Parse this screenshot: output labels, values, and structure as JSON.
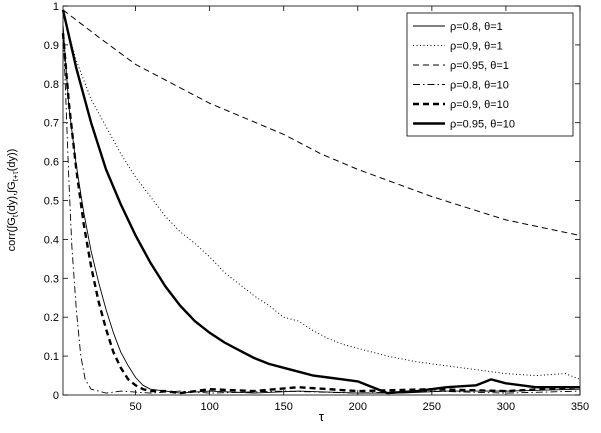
{
  "chart_data": {
    "type": "line",
    "title": "",
    "xlabel": "τ",
    "ylabel_main": "corr(∫G",
    "ylabel_sub1": "t",
    "ylabel_mid": "(dy),∫G",
    "ylabel_sub2": "t+τ",
    "ylabel_end": "(dy))",
    "xlim": [
      1,
      350
    ],
    "ylim": [
      0,
      1
    ],
    "xticks": [
      50,
      100,
      150,
      200,
      250,
      300,
      350
    ],
    "yticks": [
      0,
      0.1,
      0.2,
      0.3,
      0.4,
      0.5,
      0.6,
      0.7,
      0.8,
      0.9,
      1
    ],
    "xtick_labels": [
      "50",
      "100",
      "150",
      "200",
      "250",
      "300",
      "350"
    ],
    "ytick_labels": [
      "0",
      "0.1",
      "0.2",
      "0.3",
      "0.4",
      "0.5",
      "0.6",
      "0.7",
      "0.8",
      "0.9",
      "1"
    ],
    "grid": false,
    "legend_position": "top-right",
    "colors": {
      "line": "#000000",
      "background": "#ffffff",
      "axes": "#000000"
    },
    "series": [
      {
        "name": "ρ=0.8, θ=1",
        "style": "solid",
        "width": 0.9,
        "x": [
          1,
          5,
          10,
          15,
          20,
          25,
          30,
          35,
          40,
          45,
          50,
          55,
          60,
          70,
          80,
          100,
          130,
          160,
          200,
          230,
          260,
          300,
          350
        ],
        "y": [
          0.95,
          0.74,
          0.59,
          0.47,
          0.37,
          0.29,
          0.22,
          0.16,
          0.11,
          0.075,
          0.045,
          0.025,
          0.015,
          0.01,
          0.005,
          0.01,
          0.005,
          0.01,
          0.005,
          0.005,
          0.01,
          0.01,
          0.015
        ]
      },
      {
        "name": "ρ=0.9, θ=1",
        "style": "dotted",
        "width": 1,
        "x": [
          1,
          10,
          20,
          30,
          40,
          50,
          60,
          70,
          80,
          90,
          100,
          110,
          120,
          130,
          140,
          150,
          160,
          170,
          180,
          190,
          200,
          220,
          240,
          260,
          280,
          300,
          320,
          340,
          350
        ],
        "y": [
          0.98,
          0.86,
          0.76,
          0.69,
          0.62,
          0.56,
          0.51,
          0.46,
          0.42,
          0.39,
          0.355,
          0.315,
          0.285,
          0.255,
          0.23,
          0.2,
          0.19,
          0.165,
          0.145,
          0.13,
          0.12,
          0.1,
          0.085,
          0.075,
          0.065,
          0.055,
          0.05,
          0.055,
          0.04
        ]
      },
      {
        "name": "ρ=0.95, θ=1",
        "style": "dashed",
        "width": 1,
        "x": [
          1,
          25,
          50,
          75,
          100,
          125,
          150,
          175,
          200,
          225,
          250,
          275,
          300,
          325,
          350
        ],
        "y": [
          0.99,
          0.92,
          0.85,
          0.8,
          0.75,
          0.71,
          0.67,
          0.62,
          0.58,
          0.545,
          0.51,
          0.48,
          0.45,
          0.43,
          0.41
        ]
      },
      {
        "name": "ρ=0.8, θ=10",
        "style": "dashdot",
        "width": 0.9,
        "x": [
          1,
          3,
          5,
          7,
          10,
          13,
          16,
          20,
          25,
          30,
          40,
          60,
          80,
          100,
          150,
          200,
          250,
          300,
          350
        ],
        "y": [
          0.95,
          0.75,
          0.55,
          0.38,
          0.22,
          0.1,
          0.04,
          0.015,
          0.01,
          0.005,
          0.01,
          0.005,
          0.01,
          0.005,
          0.01,
          0.005,
          0.01,
          0.005,
          0.01
        ]
      },
      {
        "name": "ρ=0.9, θ=10",
        "style": "dashed",
        "width": 2.4,
        "x": [
          1,
          5,
          10,
          15,
          20,
          25,
          30,
          35,
          40,
          45,
          50,
          55,
          60,
          70,
          80,
          100,
          130,
          160,
          200,
          250,
          300,
          350
        ],
        "y": [
          0.93,
          0.75,
          0.58,
          0.44,
          0.33,
          0.24,
          0.17,
          0.11,
          0.07,
          0.04,
          0.025,
          0.015,
          0.01,
          0.01,
          0.005,
          0.015,
          0.01,
          0.02,
          0.01,
          0.015,
          0.01,
          0.02
        ]
      },
      {
        "name": "ρ=0.95, θ=10",
        "style": "solid",
        "width": 2.4,
        "x": [
          1,
          10,
          20,
          30,
          40,
          50,
          60,
          70,
          80,
          90,
          100,
          110,
          120,
          130,
          140,
          150,
          160,
          170,
          180,
          190,
          200,
          210,
          220,
          240,
          260,
          280,
          290,
          300,
          320,
          340,
          350
        ],
        "y": [
          0.99,
          0.84,
          0.7,
          0.58,
          0.49,
          0.41,
          0.34,
          0.28,
          0.23,
          0.19,
          0.16,
          0.135,
          0.115,
          0.095,
          0.08,
          0.07,
          0.06,
          0.05,
          0.045,
          0.04,
          0.035,
          0.02,
          0.005,
          0.01,
          0.02,
          0.025,
          0.04,
          0.03,
          0.02,
          0.02,
          0.02
        ]
      }
    ]
  }
}
